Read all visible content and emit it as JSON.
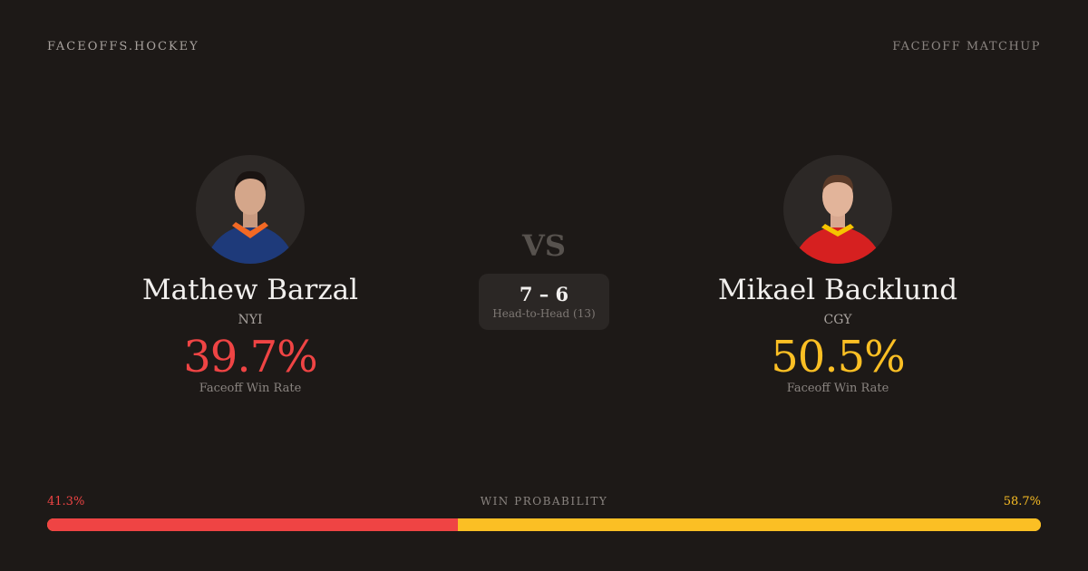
{
  "header": {
    "brand": "FACEOFFS.HOCKEY",
    "tag": "FACEOFF MATCHUP"
  },
  "players": [
    {
      "name": "Mathew Barzal",
      "team": "NYI",
      "win_rate": "39.7%",
      "win_rate_label": "Faceoff Win Rate",
      "color": "#ef4444",
      "jersey": "#1e3a7a",
      "trim": "#f26924"
    },
    {
      "name": "Mikael Backlund",
      "team": "CGY",
      "win_rate": "50.5%",
      "win_rate_label": "Faceoff Win Rate",
      "color": "#fbbf24",
      "jersey": "#d62020",
      "trim": "#f5c400"
    }
  ],
  "center": {
    "vs": "VS",
    "score": "7 – 6",
    "h2h_label": "Head-to-Head (13)"
  },
  "probability": {
    "label": "WIN PROBABILITY",
    "left": "41.3%",
    "right": "58.7%",
    "left_value": 41.3,
    "right_value": 58.7,
    "left_color": "#ef4444",
    "right_color": "#fbbf24"
  }
}
